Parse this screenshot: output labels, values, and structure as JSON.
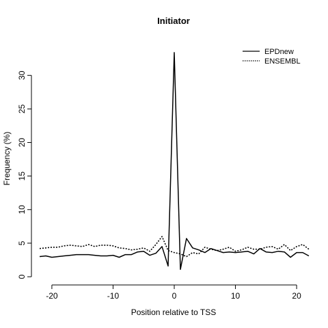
{
  "chart_data": {
    "type": "line",
    "title": "Initiator",
    "xlabel": "Position relative to TSS",
    "ylabel": "Frequency (%)",
    "xlim": [
      -22,
      22
    ],
    "ylim": [
      0,
      34
    ],
    "xticks": [
      -20,
      -10,
      0,
      10,
      20
    ],
    "yticks": [
      0,
      5,
      10,
      15,
      20,
      25,
      30
    ],
    "legend_position": "top-right",
    "x": [
      -22,
      -21,
      -20,
      -19,
      -18,
      -17,
      -16,
      -15,
      -14,
      -13,
      -12,
      -11,
      -10,
      -9,
      -8,
      -7,
      -6,
      -5,
      -4,
      -3,
      -2,
      -1,
      0,
      1,
      2,
      3,
      4,
      5,
      6,
      7,
      8,
      9,
      10,
      11,
      12,
      13,
      14,
      15,
      16,
      17,
      18,
      19,
      20,
      21,
      22
    ],
    "series": [
      {
        "name": "EPDnew",
        "line_style": "solid",
        "values": [
          3.0,
          3.1,
          2.9,
          3.0,
          3.1,
          3.2,
          3.3,
          3.3,
          3.3,
          3.2,
          3.1,
          3.1,
          3.2,
          2.9,
          3.3,
          3.3,
          3.7,
          3.8,
          3.2,
          3.5,
          4.5,
          1.6,
          33.4,
          1.1,
          5.7,
          4.3,
          4.0,
          3.6,
          4.2,
          3.9,
          3.6,
          3.7,
          3.6,
          3.7,
          3.8,
          3.4,
          4.2,
          3.7,
          3.6,
          3.8,
          3.7,
          2.9,
          3.6,
          3.6,
          3.1
        ]
      },
      {
        "name": "ENSEMBL",
        "line_style": "dotted",
        "values": [
          4.2,
          4.3,
          4.4,
          4.4,
          4.6,
          4.7,
          4.6,
          4.5,
          4.8,
          4.5,
          4.7,
          4.7,
          4.6,
          4.3,
          4.2,
          4.0,
          4.1,
          4.3,
          3.8,
          4.8,
          6.0,
          3.9,
          3.6,
          3.4,
          3.0,
          3.6,
          3.4,
          4.4,
          4.1,
          3.9,
          4.1,
          4.4,
          3.8,
          4.0,
          4.4,
          4.1,
          4.1,
          4.4,
          4.5,
          4.1,
          4.8,
          3.9,
          4.5,
          4.8,
          4.1
        ]
      }
    ]
  }
}
